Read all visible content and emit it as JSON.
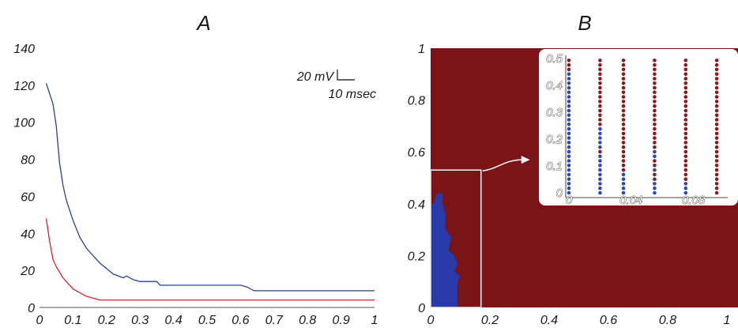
{
  "panels": {
    "a_label": "A",
    "b_label": "B"
  },
  "scale_bar": {
    "voltage": "20 mV",
    "time": "10 msec"
  },
  "colors": {
    "blue_series": "#2b3f9e",
    "red_series": "#d6222b",
    "dark_red_region": "#7a1416",
    "blue_region": "#2a3aa8",
    "inset_blue_dot": "#2e49b5",
    "inset_red_dot": "#8c1a1d"
  },
  "chart_data": [
    {
      "type": "line",
      "title": "A",
      "xlabel": "",
      "ylabel": "",
      "xlim": [
        0,
        1
      ],
      "ylim": [
        0,
        140
      ],
      "x_ticks": [
        "0",
        "0.1",
        "0.2",
        "0.3",
        "0.4",
        "0.5",
        "0.6",
        "0.7",
        "0.8",
        "0.9",
        "1"
      ],
      "y_ticks": [
        "0",
        "20",
        "40",
        "60",
        "80",
        "100",
        "120",
        "140"
      ],
      "series": [
        {
          "color": "#2b3f9e",
          "points": [
            [
              0.02,
              121
            ],
            [
              0.04,
              110
            ],
            [
              0.05,
              98
            ],
            [
              0.06,
              78
            ],
            [
              0.07,
              66
            ],
            [
              0.08,
              58
            ],
            [
              0.1,
              47
            ],
            [
              0.12,
              38
            ],
            [
              0.14,
              32
            ],
            [
              0.16,
              28
            ],
            [
              0.18,
              24
            ],
            [
              0.2,
              21
            ],
            [
              0.22,
              18
            ],
            [
              0.25,
              16
            ],
            [
              0.26,
              17
            ],
            [
              0.28,
              15
            ],
            [
              0.3,
              14
            ],
            [
              0.35,
              14
            ],
            [
              0.36,
              12
            ],
            [
              0.45,
              12
            ],
            [
              0.6,
              12
            ],
            [
              0.62,
              11
            ],
            [
              0.64,
              9
            ],
            [
              0.8,
              9
            ],
            [
              1.0,
              9
            ]
          ]
        },
        {
          "color": "#d6222b",
          "points": [
            [
              0.02,
              48
            ],
            [
              0.03,
              36
            ],
            [
              0.04,
              26
            ],
            [
              0.05,
              22
            ],
            [
              0.07,
              16
            ],
            [
              0.09,
              12
            ],
            [
              0.1,
              10
            ],
            [
              0.12,
              8
            ],
            [
              0.14,
              6
            ],
            [
              0.16,
              5
            ],
            [
              0.18,
              4
            ],
            [
              0.25,
              4
            ],
            [
              0.4,
              4
            ],
            [
              0.6,
              4
            ],
            [
              0.8,
              4
            ],
            [
              1.0,
              4
            ]
          ]
        }
      ]
    },
    {
      "type": "heatmap",
      "title": "B",
      "xlim": [
        0,
        1
      ],
      "ylim": [
        0,
        1
      ],
      "x_ticks": [
        "0",
        "0.2",
        "0.4",
        "0.6",
        "0.8",
        "1"
      ],
      "y_ticks": [
        "0",
        "0.2",
        "0.4",
        "0.6",
        "0.8",
        "1"
      ],
      "blue_region_boundary": [
        [
          0,
          0
        ],
        [
          0.09,
          0
        ],
        [
          0.09,
          0.1
        ],
        [
          0.1,
          0.12
        ],
        [
          0.08,
          0.14
        ],
        [
          0.09,
          0.17
        ],
        [
          0.08,
          0.2
        ],
        [
          0.06,
          0.22
        ],
        [
          0.07,
          0.27
        ],
        [
          0.05,
          0.3
        ],
        [
          0.05,
          0.36
        ],
        [
          0.04,
          0.4
        ],
        [
          0.04,
          0.44
        ],
        [
          0.02,
          0.44
        ],
        [
          0.01,
          0.4
        ],
        [
          0,
          0.4
        ]
      ],
      "zoom_box": {
        "x": [
          0,
          0.17
        ],
        "y": [
          0,
          0.53
        ]
      },
      "inset": {
        "type": "scatter",
        "xlim": [
          0,
          0.1
        ],
        "ylim": [
          0,
          0.5
        ],
        "x_ticks": [
          "0",
          "0.04",
          "0.08"
        ],
        "y_ticks": [
          "0",
          "0.1",
          "0.2",
          "0.3",
          "0.4",
          "0.5"
        ],
        "columns": [
          {
            "x": 0.0,
            "blue": [
              [
                0.0,
                0.45
              ]
            ]
          },
          {
            "x": 0.02,
            "blue": [
              [
                0.0,
                0.09
              ],
              [
                0.1,
                0.15
              ],
              [
                0.16,
                0.25
              ]
            ]
          },
          {
            "x": 0.035,
            "blue": [
              [
                0.0,
                0.07
              ]
            ]
          },
          {
            "x": 0.055,
            "blue": [
              [
                0.0,
                0.05
              ],
              [
                0.07,
                0.09
              ],
              [
                0.12,
                0.16
              ]
            ]
          },
          {
            "x": 0.075,
            "blue": [
              [
                0.0,
                0.05
              ]
            ]
          },
          {
            "x": 0.095,
            "blue": []
          }
        ],
        "dot_step": 0.017
      }
    }
  ]
}
